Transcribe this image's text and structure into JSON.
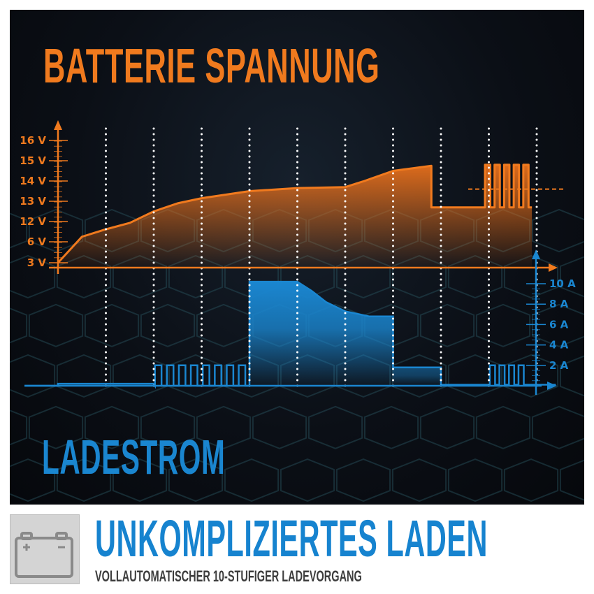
{
  "title": "BATTERIE SPANNUNG",
  "current_title": "LADESTROM",
  "footer": {
    "heading": "UNKOMPLIZIERTES LADEN",
    "subheading": "VOLLAUTOMATISCHER 10-STUFIGER LADEVORGANG",
    "icon": "car-battery-icon"
  },
  "colors": {
    "voltage": "#f07a1e",
    "current": "#1a86d0",
    "background": "#0b0f16"
  },
  "chart_data": [
    {
      "type": "area",
      "name": "voltage",
      "yticks": [
        "3 V",
        "6 V",
        "12 V",
        "13 V",
        "14 V",
        "15 V",
        "16 V"
      ],
      "ytick_values": [
        3,
        6,
        12,
        13,
        14,
        15,
        16
      ],
      "stage_dividers": [
        1,
        2,
        3,
        4,
        5,
        6,
        7,
        8,
        9,
        10
      ],
      "points": [
        [
          0,
          3
        ],
        [
          0.5,
          7.5
        ],
        [
          1,
          9.7
        ],
        [
          1.5,
          11.6
        ],
        [
          2,
          12.5
        ],
        [
          2.5,
          12.9
        ],
        [
          3,
          13.15
        ],
        [
          4,
          13.5
        ],
        [
          5,
          13.65
        ],
        [
          6,
          13.7
        ],
        [
          6.4,
          14.0
        ],
        [
          7,
          14.5
        ],
        [
          7.8,
          14.75
        ],
        [
          7.8,
          12.7
        ],
        [
          8.9,
          12.7
        ]
      ],
      "pulses": {
        "from": 8.9,
        "to": 9.9,
        "count": 5,
        "high": 14.8,
        "low": 12.7
      },
      "reference_level": 13.6
    },
    {
      "type": "line",
      "name": "current",
      "yticks": [
        "2 A",
        "4 A",
        "6 A",
        "8 A",
        "10 A"
      ],
      "ytick_values": [
        2,
        4,
        6,
        8,
        10
      ],
      "points": [
        [
          -0.7,
          0
        ],
        [
          0,
          0
        ],
        [
          0,
          0.2
        ],
        [
          2,
          0.2
        ]
      ],
      "pulses_1": {
        "from": 2,
        "to": 4,
        "count": 8,
        "high": 2,
        "low": 0
      },
      "points_2": [
        [
          4,
          0
        ],
        [
          4,
          10.2
        ],
        [
          5,
          10.2
        ],
        [
          5.3,
          9.3
        ],
        [
          5.6,
          8.2
        ],
        [
          6,
          7.3
        ],
        [
          6.5,
          6.8
        ],
        [
          7,
          6.8
        ],
        [
          7,
          1.8
        ],
        [
          8,
          1.8
        ],
        [
          8,
          0.1
        ],
        [
          9,
          0.1
        ]
      ],
      "pulses_2": {
        "from": 9,
        "to": 9.8,
        "count": 4,
        "high": 2,
        "low": 0.1
      }
    }
  ]
}
